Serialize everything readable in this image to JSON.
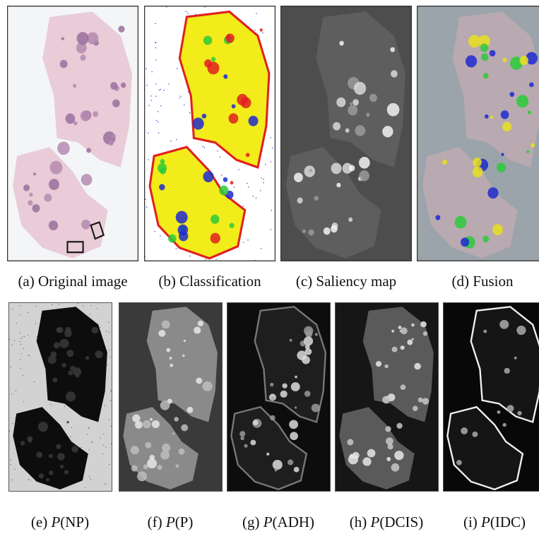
{
  "figure": {
    "top_panels": [
      {
        "label": "(a)",
        "caption": "Original image"
      },
      {
        "label": "(b)",
        "caption": "Classification"
      },
      {
        "label": "(c)",
        "caption": "Saliency map"
      },
      {
        "label": "(d)",
        "caption": "Fusion"
      }
    ],
    "bottom_panels": [
      {
        "label": "(e)",
        "symbol": "P",
        "argument": "(NP)"
      },
      {
        "label": "(f)",
        "symbol": "P",
        "argument": "(P)"
      },
      {
        "label": "(g)",
        "symbol": "P",
        "argument": "(ADH)"
      },
      {
        "label": "(h)",
        "symbol": "P",
        "argument": "(DCIS)"
      },
      {
        "label": "(i)",
        "symbol": "P",
        "argument": "(IDC)"
      }
    ]
  }
}
